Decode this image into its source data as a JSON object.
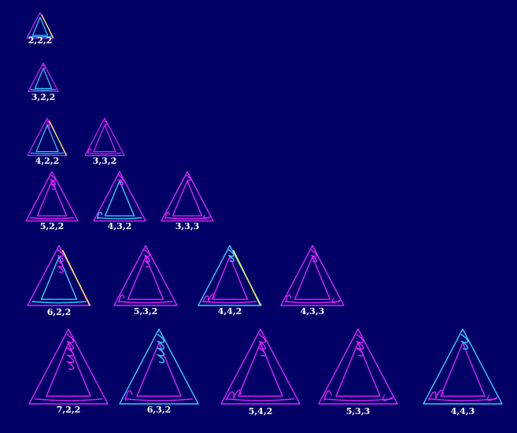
{
  "colors": {
    "background": "#000066",
    "magenta": "#dd22ff",
    "cyan": "#33ccff",
    "yellow": "#ffff44",
    "label": "#ffffff"
  },
  "diagrams": [
    {
      "id": "2-2-2",
      "label": "2,2,2",
      "outer": "magenta",
      "inner": "cyan",
      "highlight": "yellow",
      "twists": [
        0,
        0,
        0
      ]
    },
    {
      "id": "3-2-2",
      "label": "3,2,2",
      "outer": "magenta",
      "inner": "cyan",
      "highlight": "",
      "twists": [
        1,
        0,
        0
      ]
    },
    {
      "id": "4-2-2",
      "label": "4,2,2",
      "outer": "magenta",
      "inner": "cyan",
      "highlight": "yellow",
      "twists": [
        2,
        0,
        0
      ]
    },
    {
      "id": "3-3-2",
      "label": "3,3,2",
      "outer": "magenta",
      "inner": "magenta",
      "highlight": "",
      "twists": [
        1,
        1,
        0
      ]
    },
    {
      "id": "5-2-2",
      "label": "5,2,2",
      "outer": "magenta",
      "inner": "magenta",
      "highlight": "",
      "twists": [
        3,
        0,
        0
      ]
    },
    {
      "id": "4-3-2",
      "label": "4,3,2",
      "outer": "magenta",
      "inner": "cyan",
      "highlight": "",
      "twists": [
        2,
        1,
        0
      ]
    },
    {
      "id": "3-3-3",
      "label": "3,3,3",
      "outer": "magenta",
      "inner": "magenta",
      "highlight": "",
      "twists": [
        1,
        1,
        1
      ]
    },
    {
      "id": "6-2-2",
      "label": "6,2,2",
      "outer": "magenta",
      "inner": "cyan",
      "highlight": "yellow",
      "twists": [
        4,
        0,
        0
      ]
    },
    {
      "id": "5-3-2",
      "label": "5,3,2",
      "outer": "magenta",
      "inner": "magenta",
      "highlight": "",
      "twists": [
        3,
        1,
        0
      ]
    },
    {
      "id": "4-4-2",
      "label": "4,4,2",
      "outer": "cyan",
      "inner": "magenta",
      "highlight": "yellow",
      "twists": [
        2,
        2,
        0
      ]
    },
    {
      "id": "4-3-3",
      "label": "4,3,3",
      "outer": "magenta",
      "inner": "magenta",
      "highlight": "",
      "twists": [
        2,
        1,
        1
      ]
    },
    {
      "id": "7-2-2",
      "label": "7,2,2",
      "outer": "magenta",
      "inner": "magenta",
      "highlight": "",
      "twists": [
        5,
        0,
        0
      ]
    },
    {
      "id": "6-3-2",
      "label": "6,3,2",
      "outer": "cyan",
      "inner": "magenta",
      "highlight": "",
      "twists": [
        4,
        1,
        0
      ]
    },
    {
      "id": "5-4-2",
      "label": "5,4,2",
      "outer": "magenta",
      "inner": "magenta",
      "highlight": "",
      "twists": [
        3,
        2,
        0
      ]
    },
    {
      "id": "5-3-3",
      "label": "5,3,3",
      "outer": "magenta",
      "inner": "magenta",
      "highlight": "",
      "twists": [
        3,
        1,
        1
      ]
    },
    {
      "id": "4-4-3",
      "label": "4,4,3",
      "outer": "cyan",
      "inner": "magenta",
      "highlight": "",
      "twists": [
        2,
        2,
        1
      ]
    }
  ]
}
